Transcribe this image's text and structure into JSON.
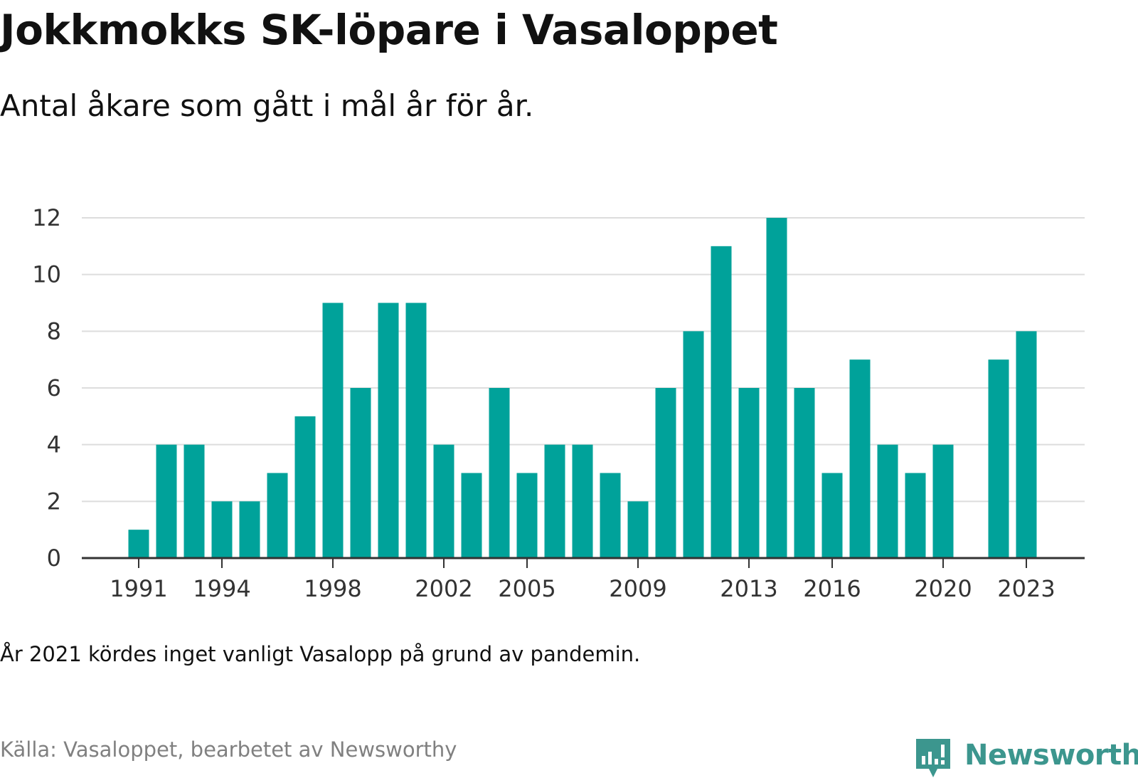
{
  "title": "Jokkmokks SK-löpare i Vasaloppet",
  "subtitle": "Antal åkare som gått i mål år för år.",
  "note": "År 2021 kördes inget vanligt Vasalopp på grund av pandemin.",
  "source": "Källa: Vasaloppet, bearbetet av Newsworthy",
  "brand": {
    "name": "Newsworthy",
    "icon": "newsworthy-logo-icon",
    "color": "#3c968e"
  },
  "colors": {
    "bar": "#00a29a",
    "grid": "#dddddd",
    "axis": "#333333",
    "text": "#111111"
  },
  "chart_data": {
    "type": "bar",
    "categories": [
      "1991",
      "1992",
      "1993",
      "1994",
      "1995",
      "1996",
      "1997",
      "1998",
      "1999",
      "2000",
      "2001",
      "2002",
      "2003",
      "2004",
      "2005",
      "2006",
      "2007",
      "2008",
      "2009",
      "2010",
      "2011",
      "2012",
      "2013",
      "2014",
      "2015",
      "2016",
      "2017",
      "2018",
      "2019",
      "2020",
      "2021",
      "2022",
      "2023"
    ],
    "values": [
      1,
      4,
      4,
      2,
      2,
      3,
      5,
      9,
      6,
      9,
      9,
      4,
      3,
      6,
      3,
      4,
      4,
      3,
      2,
      6,
      8,
      11,
      6,
      12,
      6,
      3,
      7,
      4,
      3,
      4,
      null,
      7,
      8
    ],
    "ylim": [
      0,
      12
    ],
    "yticks": [
      0,
      2,
      4,
      6,
      8,
      10,
      12
    ],
    "xticks": [
      "1991",
      "1994",
      "1998",
      "2002",
      "2005",
      "2009",
      "2013",
      "2016",
      "2020",
      "2023"
    ],
    "grid": true,
    "legend": "none"
  }
}
